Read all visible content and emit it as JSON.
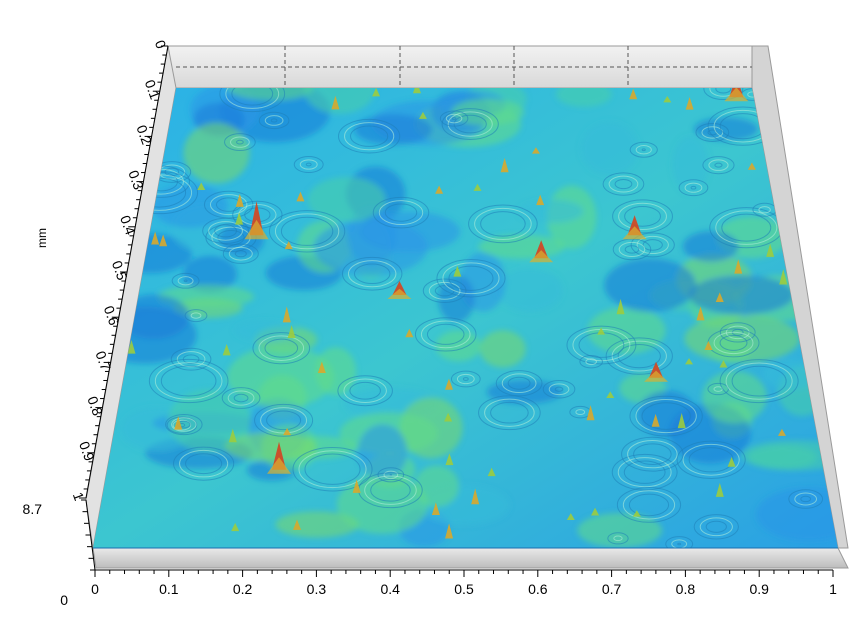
{
  "chart_data": {
    "type": "surface",
    "title": "",
    "x_axis": {
      "label": "",
      "range": [
        0,
        1
      ],
      "ticks": [
        "0",
        "0.1",
        "0.2",
        "0.3",
        "0.4",
        "0.5",
        "0.6",
        "0.7",
        "0.8",
        "0.9",
        "1"
      ]
    },
    "y_axis": {
      "label": "mm",
      "range": [
        0,
        1
      ],
      "ticks": [
        "0",
        "0.1",
        "0.2",
        "0.3",
        "0.4",
        "0.5",
        "0.6",
        "0.7",
        "0.8",
        "0.9",
        "1"
      ]
    },
    "z_axis": {
      "label": "",
      "ticks": [
        "0",
        "8.7"
      ]
    },
    "grid": true,
    "colormap": [
      "#1e7fd8",
      "#2aa8f0",
      "#3fd6c8",
      "#5fe08a",
      "#9fd94a",
      "#e0b02a",
      "#d9562a",
      "#c92a1e"
    ],
    "floor_color": "#cfcfcf",
    "wall_color": "#e6e6e6"
  }
}
